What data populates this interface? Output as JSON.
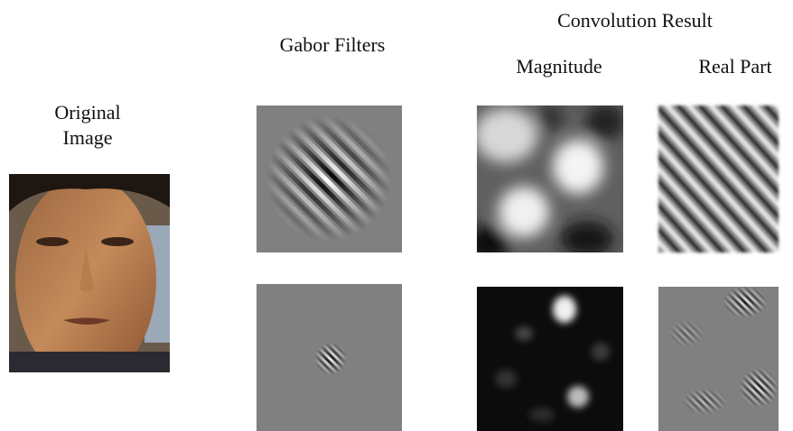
{
  "labels": {
    "original": [
      "Original",
      "Image"
    ],
    "gabor": "Gabor Filters",
    "convolution": "Convolution Result",
    "magnitude": "Magnitude",
    "real": "Real Part"
  }
}
